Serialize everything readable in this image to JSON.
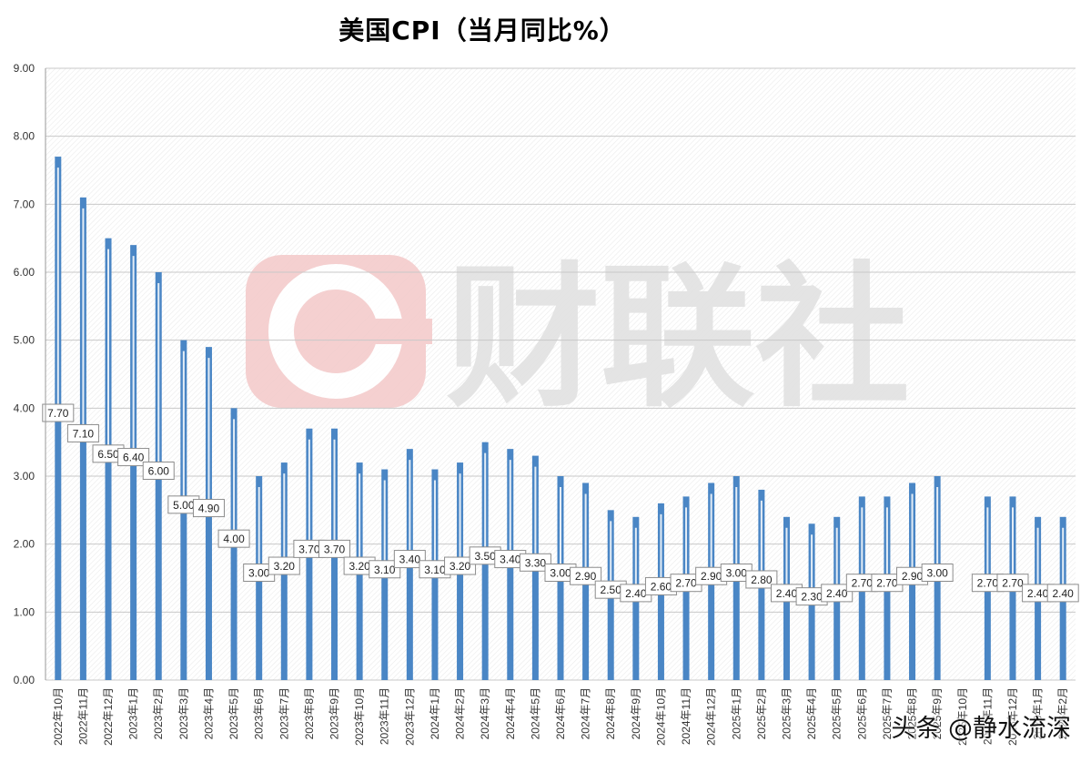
{
  "colors": {
    "bar": "#4a86c5",
    "gridline": "#c8c8c8",
    "watermark_red": "#f2c6c6",
    "watermark_gray": "#e2e2e2",
    "label_border": "#8c8c8c"
  },
  "watermark": {
    "text": "财联社",
    "icon": "cailianshe-logo-icon"
  },
  "credit": "头条 @静水流深",
  "chart_data": {
    "type": "bar",
    "title": "美国CPI（当月同比%）",
    "xlabel": "",
    "ylabel": "",
    "ylim": [
      0,
      9
    ],
    "yticks": [
      "0.00",
      "1.00",
      "2.00",
      "3.00",
      "4.00",
      "5.00",
      "6.00",
      "7.00",
      "8.00",
      "9.00"
    ],
    "grid": true,
    "legend": "none",
    "categories": [
      "2022年10月",
      "2022年11月",
      "2022年12月",
      "2023年1月",
      "2023年2月",
      "2023年3月",
      "2023年4月",
      "2023年5月",
      "2023年6月",
      "2023年7月",
      "2023年8月",
      "2023年9月",
      "2023年10月",
      "2023年11月",
      "2023年12月",
      "2024年1月",
      "2024年2月",
      "2024年3月",
      "2024年4月",
      "2024年5月",
      "2024年6月",
      "2024年7月",
      "2024年8月",
      "2024年9月",
      "2024年10月",
      "2024年11月",
      "2024年12月",
      "2025年1月",
      "2025年2月",
      "2025年3月",
      "2025年4月",
      "2025年5月",
      "2025年6月",
      "2025年7月",
      "2025年8月",
      "2025年9月",
      "2025年10月",
      "2025年11月",
      "2025年12月",
      "2026年1月",
      "2026年2月"
    ],
    "values": [
      7.7,
      7.1,
      6.5,
      6.4,
      6.0,
      5.0,
      4.9,
      4.0,
      3.0,
      3.2,
      3.7,
      3.7,
      3.2,
      3.1,
      3.4,
      3.1,
      3.2,
      3.5,
      3.4,
      3.3,
      3.0,
      2.9,
      2.5,
      2.4,
      2.6,
      2.7,
      2.9,
      3.0,
      2.8,
      2.4,
      2.3,
      2.4,
      2.7,
      2.7,
      2.9,
      3.0,
      null,
      2.7,
      2.7,
      2.4,
      2.4
    ],
    "data_labels": [
      "7.70",
      "7.10",
      "6.50",
      "6.40",
      "6.00",
      "5.00",
      "4.90",
      "4.00",
      "3.00",
      "3.20",
      "3.70",
      "3.70",
      "3.20",
      "3.10",
      "3.40",
      "3.10",
      "3.20",
      "3.50",
      "3.40",
      "3.30",
      "3.00",
      "2.90",
      "2.50",
      "2.40",
      "2.60",
      "2.70",
      "2.90",
      "3.00",
      "2.80",
      "2.40",
      "2.30",
      "2.40",
      "2.70",
      "2.70",
      "2.90",
      "3.00",
      "",
      "2.70",
      "2.70",
      "2.40",
      "2.40"
    ]
  }
}
